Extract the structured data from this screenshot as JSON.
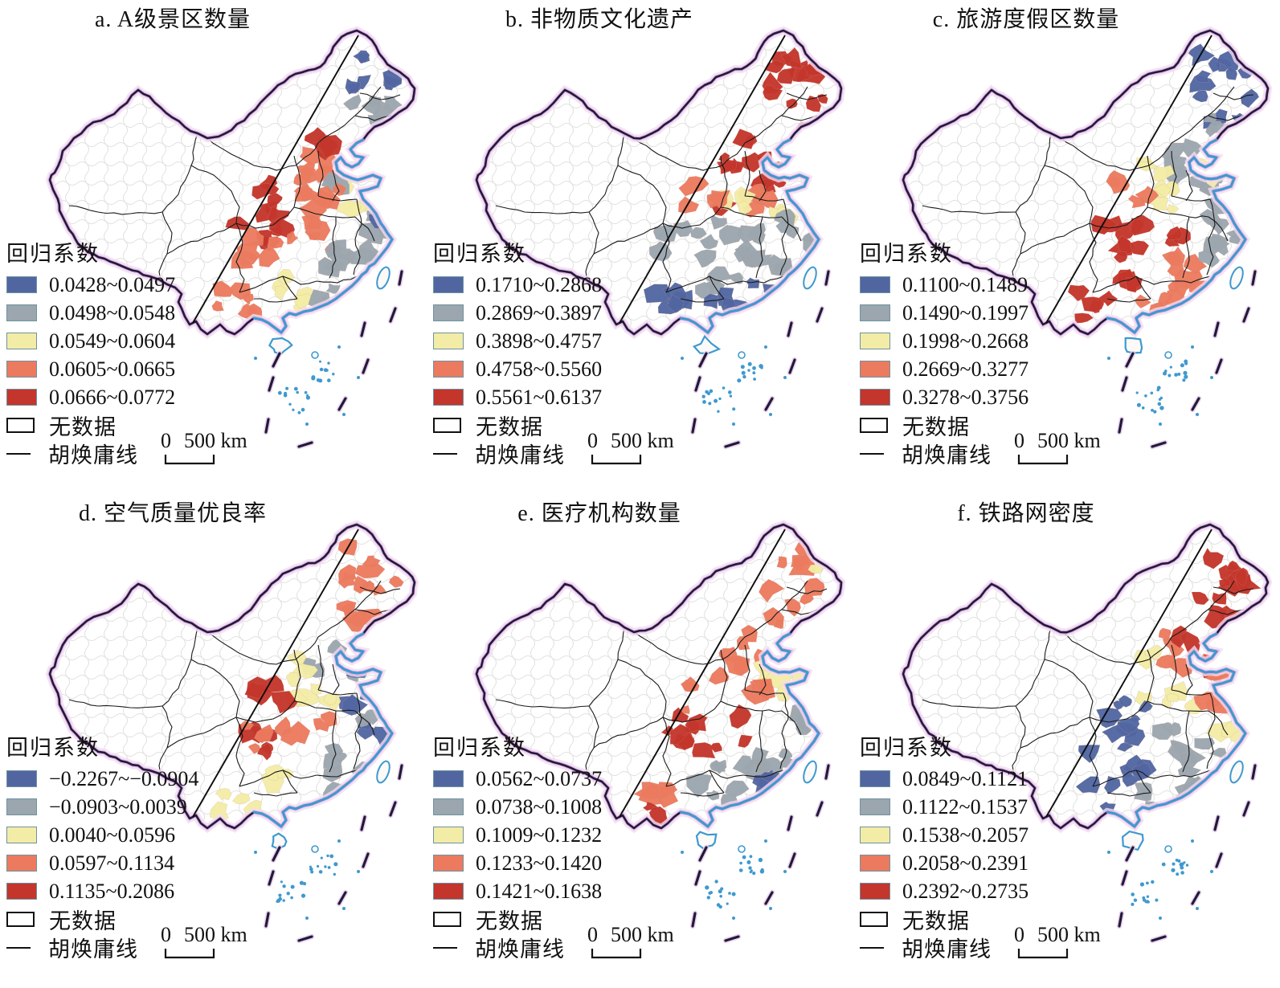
{
  "figure": {
    "legend_title": "回归系数",
    "no_data_label": "无数据",
    "hu_line_label": "胡焕庸线",
    "scale_bar": {
      "zero": "0",
      "label": "500 km"
    },
    "class_colors": [
      "#5166a1",
      "#9ba6ae",
      "#f3eca6",
      "#eb7a5e",
      "#c4352b"
    ],
    "colors": {
      "coastline": "#3f99cf",
      "national_border": "#211a3a",
      "border_glow": "#dcaee3",
      "hu_line": "#0d0d0d",
      "island_dots": "#3f99cf",
      "no_data_fill": "#ffffff"
    },
    "region_format": [
      "x",
      "y",
      "spread_x",
      "spread_y",
      "count",
      "class_index"
    ],
    "panels": [
      {
        "label": "a",
        "title": "a. A级景区数量",
        "classes": [
          "0.0428~0.0497",
          "0.0498~0.0548",
          "0.0549~0.0604",
          "0.0605~0.0665",
          "0.0666~0.0772"
        ],
        "regions": [
          [
            462,
            92,
            38,
            28,
            10,
            0
          ],
          [
            462,
            142,
            32,
            20,
            7,
            1
          ],
          [
            402,
            196,
            20,
            24,
            5,
            3
          ],
          [
            408,
            188,
            16,
            16,
            3,
            4
          ],
          [
            374,
            226,
            12,
            30,
            5,
            3
          ],
          [
            442,
            220,
            26,
            14,
            5,
            2
          ],
          [
            430,
            232,
            20,
            10,
            3,
            1
          ],
          [
            404,
            252,
            20,
            16,
            4,
            3
          ],
          [
            452,
            262,
            22,
            18,
            4,
            2
          ],
          [
            468,
            286,
            16,
            18,
            4,
            1
          ],
          [
            478,
            276,
            10,
            10,
            2,
            0
          ],
          [
            342,
            248,
            24,
            22,
            7,
            4
          ],
          [
            322,
            300,
            32,
            24,
            5,
            4
          ],
          [
            330,
            308,
            30,
            22,
            6,
            3
          ],
          [
            388,
            296,
            28,
            20,
            5,
            3
          ],
          [
            406,
            330,
            20,
            18,
            4,
            1
          ],
          [
            438,
            322,
            20,
            20,
            4,
            1
          ],
          [
            352,
            350,
            18,
            14,
            3,
            2
          ],
          [
            296,
            384,
            28,
            22,
            6,
            3
          ],
          [
            374,
            376,
            20,
            14,
            3,
            2
          ],
          [
            418,
            366,
            22,
            14,
            4,
            1
          ]
        ]
      },
      {
        "label": "b",
        "title": "b. 非物质文化遗产",
        "classes": [
          "0.1710~0.2868",
          "0.2869~0.3897",
          "0.3898~0.4757",
          "0.4758~0.5560",
          "0.5561~0.6137"
        ],
        "regions": [
          [
            462,
            92,
            38,
            28,
            10,
            4
          ],
          [
            462,
            142,
            32,
            20,
            6,
            4
          ],
          [
            402,
            196,
            20,
            24,
            6,
            4
          ],
          [
            374,
            226,
            12,
            30,
            4,
            4
          ],
          [
            442,
            220,
            26,
            14,
            5,
            4
          ],
          [
            404,
            252,
            20,
            16,
            5,
            3
          ],
          [
            382,
            250,
            14,
            10,
            3,
            2
          ],
          [
            452,
            262,
            22,
            18,
            3,
            2
          ],
          [
            460,
            274,
            18,
            12,
            3,
            1
          ],
          [
            342,
            248,
            24,
            22,
            4,
            3
          ],
          [
            322,
            300,
            32,
            24,
            7,
            1
          ],
          [
            388,
            296,
            28,
            20,
            6,
            1
          ],
          [
            406,
            330,
            20,
            18,
            5,
            1
          ],
          [
            438,
            322,
            20,
            20,
            3,
            1
          ],
          [
            468,
            286,
            16,
            18,
            3,
            1
          ],
          [
            352,
            350,
            18,
            14,
            3,
            1
          ],
          [
            296,
            384,
            28,
            22,
            6,
            0
          ],
          [
            374,
            376,
            20,
            14,
            5,
            0
          ],
          [
            418,
            366,
            22,
            14,
            5,
            0
          ]
        ]
      },
      {
        "label": "c",
        "title": "c. 旅游度假区数量",
        "classes": [
          "0.1100~0.1489",
          "0.1490~0.1997",
          "0.1998~0.2668",
          "0.2669~0.3277",
          "0.3278~0.3756"
        ],
        "regions": [
          [
            462,
            92,
            38,
            28,
            10,
            0
          ],
          [
            468,
            138,
            28,
            18,
            4,
            0
          ],
          [
            448,
            150,
            24,
            14,
            4,
            1
          ],
          [
            402,
            196,
            20,
            24,
            5,
            1
          ],
          [
            374,
            226,
            12,
            30,
            5,
            2
          ],
          [
            442,
            220,
            26,
            14,
            5,
            1
          ],
          [
            448,
            210,
            16,
            10,
            3,
            2
          ],
          [
            404,
            252,
            20,
            16,
            3,
            2
          ],
          [
            452,
            262,
            22,
            18,
            5,
            1
          ],
          [
            468,
            286,
            16,
            18,
            4,
            1
          ],
          [
            342,
            248,
            24,
            22,
            4,
            3
          ],
          [
            322,
            300,
            32,
            24,
            8,
            4
          ],
          [
            388,
            296,
            28,
            20,
            4,
            4
          ],
          [
            352,
            350,
            18,
            14,
            4,
            4
          ],
          [
            296,
            384,
            28,
            22,
            5,
            4
          ],
          [
            406,
            330,
            20,
            18,
            5,
            3
          ],
          [
            374,
            376,
            20,
            14,
            4,
            3
          ],
          [
            418,
            366,
            22,
            14,
            4,
            3
          ],
          [
            438,
            322,
            20,
            20,
            3,
            1
          ]
        ]
      },
      {
        "label": "d",
        "title": "d. 空气质量优良率",
        "classes": [
          "−0.2267~−0.0904",
          "−0.0903~0.0039",
          "0.0040~0.0596",
          "0.0597~0.1134",
          "0.1135~0.2086"
        ],
        "regions": [
          [
            462,
            92,
            38,
            28,
            9,
            3
          ],
          [
            462,
            142,
            32,
            20,
            5,
            3
          ],
          [
            402,
            196,
            20,
            24,
            3,
            1
          ],
          [
            374,
            226,
            12,
            30,
            5,
            2
          ],
          [
            442,
            220,
            26,
            14,
            4,
            1
          ],
          [
            452,
            214,
            12,
            8,
            2,
            0
          ],
          [
            452,
            262,
            22,
            18,
            3,
            0
          ],
          [
            468,
            286,
            16,
            18,
            3,
            0
          ],
          [
            462,
            276,
            12,
            10,
            2,
            1
          ],
          [
            404,
            252,
            20,
            16,
            3,
            2
          ],
          [
            342,
            248,
            24,
            22,
            4,
            4
          ],
          [
            322,
            300,
            32,
            24,
            6,
            4
          ],
          [
            330,
            308,
            28,
            20,
            4,
            3
          ],
          [
            388,
            296,
            28,
            20,
            3,
            3
          ],
          [
            406,
            330,
            20,
            18,
            3,
            1
          ],
          [
            352,
            350,
            18,
            14,
            3,
            2
          ],
          [
            296,
            384,
            28,
            22,
            4,
            2
          ],
          [
            418,
            366,
            22,
            14,
            3,
            1
          ],
          [
            438,
            322,
            20,
            20,
            2,
            1
          ]
        ]
      },
      {
        "label": "e",
        "title": "e. 医疗机构数量",
        "classes": [
          "0.0562~0.0737",
          "0.0738~0.1008",
          "0.1009~0.1232",
          "0.1233~0.1420",
          "0.1421~0.1638"
        ],
        "regions": [
          [
            462,
            92,
            38,
            28,
            8,
            3
          ],
          [
            478,
            84,
            14,
            10,
            2,
            2
          ],
          [
            462,
            142,
            32,
            20,
            4,
            3
          ],
          [
            402,
            196,
            20,
            24,
            4,
            3
          ],
          [
            374,
            226,
            12,
            30,
            3,
            3
          ],
          [
            442,
            220,
            26,
            14,
            4,
            2
          ],
          [
            404,
            252,
            20,
            16,
            4,
            3
          ],
          [
            452,
            262,
            22,
            18,
            2,
            2
          ],
          [
            468,
            286,
            16,
            18,
            4,
            1
          ],
          [
            342,
            248,
            24,
            22,
            3,
            3
          ],
          [
            322,
            300,
            32,
            24,
            8,
            4
          ],
          [
            388,
            296,
            28,
            20,
            3,
            4
          ],
          [
            406,
            330,
            20,
            18,
            4,
            1
          ],
          [
            438,
            322,
            20,
            20,
            3,
            1
          ],
          [
            352,
            350,
            18,
            14,
            3,
            1
          ],
          [
            296,
            384,
            28,
            22,
            4,
            3
          ],
          [
            288,
            392,
            16,
            12,
            2,
            4
          ],
          [
            374,
            376,
            20,
            14,
            3,
            1
          ],
          [
            418,
            366,
            22,
            14,
            5,
            0
          ]
        ]
      },
      {
        "label": "f",
        "title": "f. 铁路网密度",
        "classes": [
          "0.0849~0.1121",
          "0.1122~0.1537",
          "0.1538~0.2057",
          "0.2058~0.2391",
          "0.2392~0.2735"
        ],
        "regions": [
          [
            462,
            92,
            38,
            28,
            10,
            4
          ],
          [
            462,
            142,
            32,
            20,
            5,
            4
          ],
          [
            402,
            196,
            20,
            24,
            5,
            3
          ],
          [
            410,
            188,
            12,
            12,
            2,
            4
          ],
          [
            374,
            226,
            12,
            30,
            4,
            2
          ],
          [
            442,
            220,
            26,
            14,
            5,
            3
          ],
          [
            450,
            212,
            12,
            8,
            2,
            4
          ],
          [
            404,
            252,
            20,
            16,
            4,
            2
          ],
          [
            452,
            262,
            22,
            18,
            4,
            3
          ],
          [
            468,
            286,
            16,
            18,
            3,
            2
          ],
          [
            342,
            248,
            24,
            22,
            3,
            0
          ],
          [
            322,
            300,
            32,
            24,
            8,
            0
          ],
          [
            388,
            296,
            28,
            20,
            4,
            1
          ],
          [
            406,
            330,
            20,
            18,
            4,
            1
          ],
          [
            352,
            350,
            18,
            14,
            5,
            0
          ],
          [
            296,
            384,
            28,
            22,
            3,
            0
          ],
          [
            374,
            376,
            20,
            14,
            3,
            1
          ],
          [
            418,
            366,
            22,
            14,
            4,
            1
          ],
          [
            438,
            322,
            20,
            20,
            3,
            1
          ]
        ]
      }
    ]
  }
}
